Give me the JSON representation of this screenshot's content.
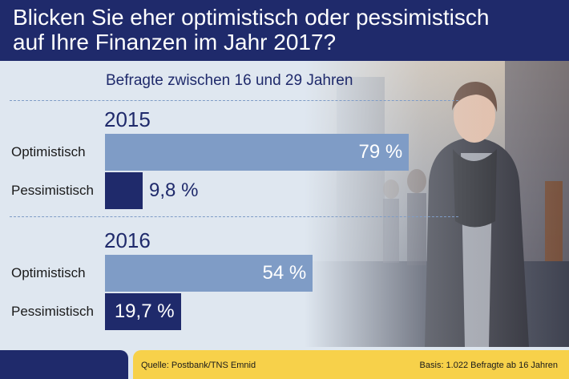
{
  "header": {
    "title_line1": "Blicken Sie eher optimistisch oder pessimistisch",
    "title_line2": "auf Ihre Finanzen im Jahr 2017?"
  },
  "subtitle": "Befragte zwischen 16 und 29 Jahren",
  "footer": {
    "source": "Quelle: Postbank/TNS Emnid",
    "basis": "Basis: 1.022 Befragte ab 16 Jahren"
  },
  "colors": {
    "navy": "#1f2a6b",
    "light_bar": "#7f9cc6",
    "yellow": "#f7d14a",
    "background": "#dfe7f0"
  },
  "chart_data": {
    "type": "bar",
    "orientation": "horizontal",
    "title": "Blicken Sie eher optimistisch oder pessimistisch auf Ihre Finanzen im Jahr 2017?",
    "subtitle": "Befragte zwischen 16 und 29 Jahren",
    "unit": "%",
    "xlim": [
      0,
      100
    ],
    "groups": [
      {
        "year": "2015",
        "bars": [
          {
            "label": "Optimistisch",
            "value": 79,
            "display": "79 %"
          },
          {
            "label": "Pessimistisch",
            "value": 9.8,
            "display": "9,8 %"
          }
        ]
      },
      {
        "year": "2016",
        "bars": [
          {
            "label": "Optimistisch",
            "value": 54,
            "display": "54 %"
          },
          {
            "label": "Pessimistisch",
            "value": 19.7,
            "display": "19,7 %"
          }
        ]
      }
    ]
  }
}
